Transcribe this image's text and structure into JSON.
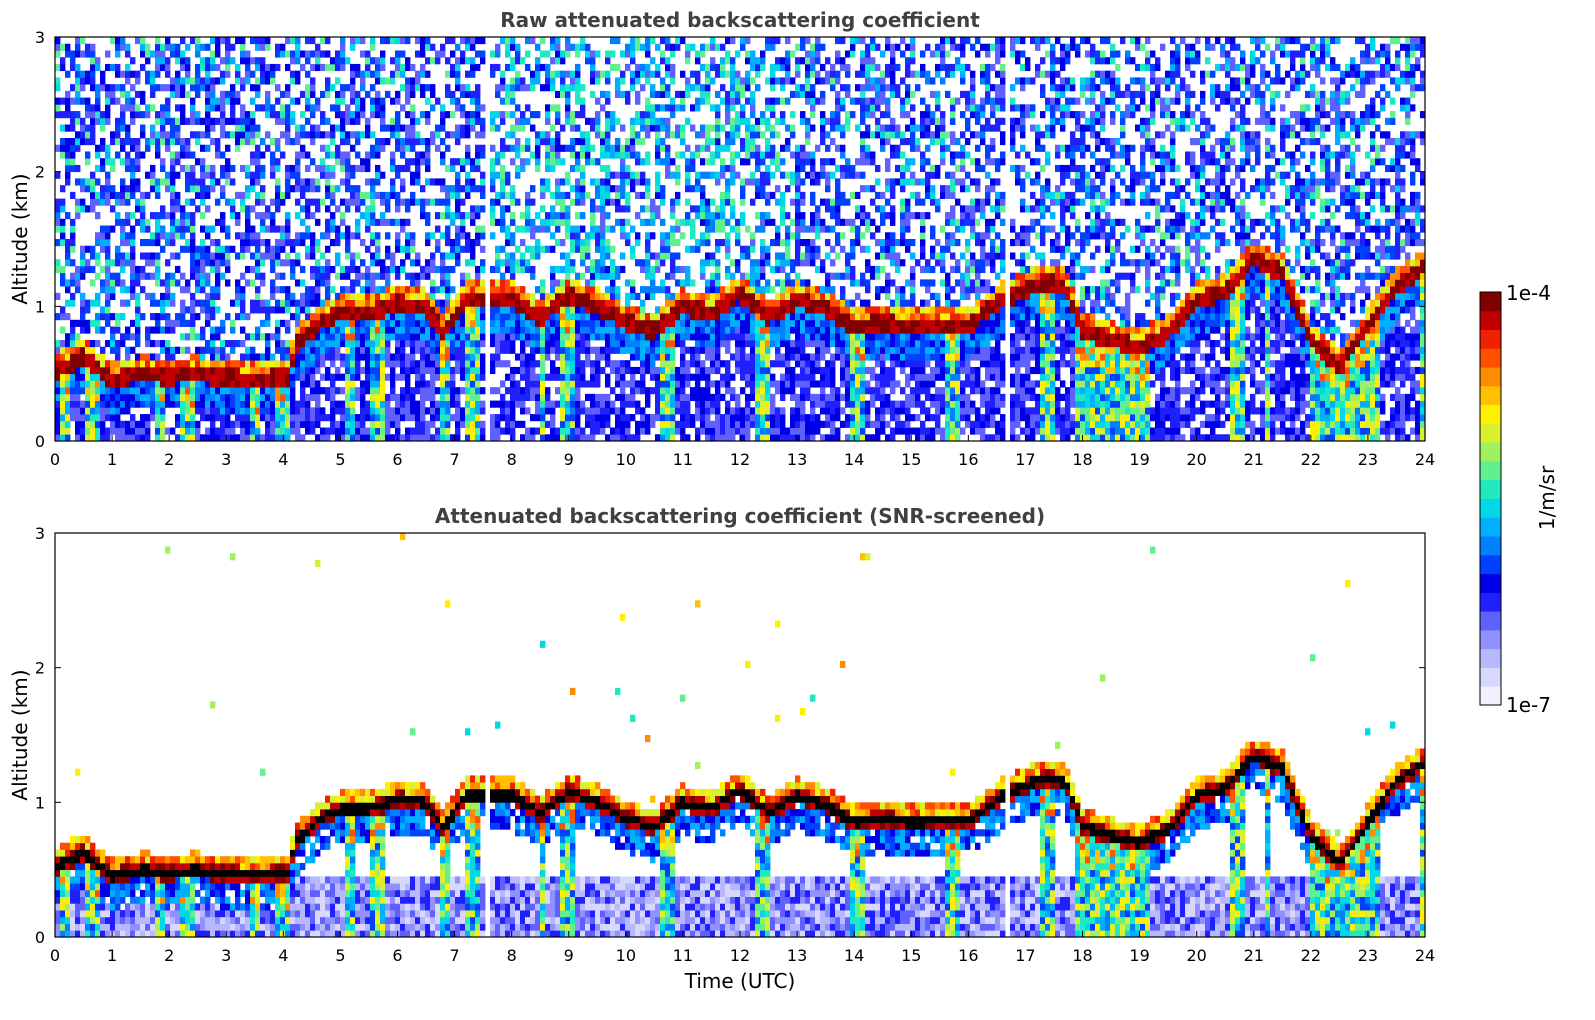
{
  "chart_data": [
    {
      "type": "heatmap",
      "title": "Raw attenuated backscattering coefficient",
      "xlabel": "",
      "ylabel": "Altitude (km)",
      "xlim": [
        0,
        24
      ],
      "ylim": [
        0,
        3
      ],
      "xticks": [
        "0",
        "1",
        "2",
        "3",
        "4",
        "5",
        "6",
        "7",
        "8",
        "9",
        "10",
        "11",
        "12",
        "13",
        "14",
        "15",
        "16",
        "17",
        "18",
        "19",
        "20",
        "21",
        "22",
        "23",
        "24"
      ],
      "yticks": [
        "0",
        "1",
        "2",
        "3"
      ],
      "screened": false,
      "data_gaps_hours": [
        [
          7.5,
          7.6
        ],
        [
          16.65,
          16.75
        ]
      ],
      "cloud_base_km": [
        {
          "t": 0,
          "z": 0.52
        },
        {
          "t": 0.5,
          "z": 0.62
        },
        {
          "t": 1,
          "z": 0.45
        },
        {
          "t": 1.5,
          "z": 0.5
        },
        {
          "t": 2,
          "z": 0.48
        },
        {
          "t": 2.5,
          "z": 0.5
        },
        {
          "t": 3,
          "z": 0.47
        },
        {
          "t": 3.5,
          "z": 0.46
        },
        {
          "t": 4.1,
          "z": 0.47
        },
        {
          "t": 4.2,
          "z": 0.7
        },
        {
          "t": 4.7,
          "z": 0.9
        },
        {
          "t": 5,
          "z": 0.95
        },
        {
          "t": 5.5,
          "z": 0.95
        },
        {
          "t": 6,
          "z": 1.02
        },
        {
          "t": 6.5,
          "z": 1.0
        },
        {
          "t": 6.8,
          "z": 0.8
        },
        {
          "t": 7.2,
          "z": 1.05
        },
        {
          "t": 7.5,
          "z": 1.05
        },
        {
          "t": 8,
          "z": 1.05
        },
        {
          "t": 8.5,
          "z": 0.92
        },
        {
          "t": 9,
          "z": 1.08
        },
        {
          "t": 9.5,
          "z": 1.0
        },
        {
          "t": 10,
          "z": 0.88
        },
        {
          "t": 10.5,
          "z": 0.82
        },
        {
          "t": 11,
          "z": 1.0
        },
        {
          "t": 11.5,
          "z": 0.95
        },
        {
          "t": 12,
          "z": 1.1
        },
        {
          "t": 12.5,
          "z": 0.92
        },
        {
          "t": 13,
          "z": 1.05
        },
        {
          "t": 13.5,
          "z": 0.98
        },
        {
          "t": 14,
          "z": 0.85
        },
        {
          "t": 14.5,
          "z": 0.88
        },
        {
          "t": 15,
          "z": 0.85
        },
        {
          "t": 15.5,
          "z": 0.86
        },
        {
          "t": 16,
          "z": 0.86
        },
        {
          "t": 16.6,
          "z": 1.05
        },
        {
          "t": 17.3,
          "z": 1.18
        },
        {
          "t": 17.7,
          "z": 1.15
        },
        {
          "t": 18,
          "z": 0.82
        },
        {
          "t": 18.5,
          "z": 0.75
        },
        {
          "t": 19,
          "z": 0.7
        },
        {
          "t": 19.5,
          "z": 0.8
        },
        {
          "t": 20,
          "z": 1.05
        },
        {
          "t": 20.5,
          "z": 1.1
        },
        {
          "t": 21,
          "z": 1.35
        },
        {
          "t": 21.5,
          "z": 1.25
        },
        {
          "t": 22,
          "z": 0.75
        },
        {
          "t": 22.5,
          "z": 0.55
        },
        {
          "t": 23,
          "z": 0.85
        },
        {
          "t": 23.5,
          "z": 1.15
        },
        {
          "t": 24,
          "z": 1.3
        }
      ],
      "colorbar": {
        "min_label": "1e-7",
        "max_label": "1e-4",
        "label": "1/m/sr",
        "scale": "log"
      }
    },
    {
      "type": "heatmap",
      "title": "Attenuated backscattering coefficient (SNR-screened)",
      "xlabel": "Time (UTC)",
      "ylabel": "Altitude (km)",
      "xlim": [
        0,
        24
      ],
      "ylim": [
        0,
        3
      ],
      "xticks": [
        "0",
        "1",
        "2",
        "3",
        "4",
        "5",
        "6",
        "7",
        "8",
        "9",
        "10",
        "11",
        "12",
        "13",
        "14",
        "15",
        "16",
        "17",
        "18",
        "19",
        "20",
        "21",
        "22",
        "23",
        "24"
      ],
      "yticks": [
        "0",
        "1",
        "2",
        "3"
      ],
      "screened": true,
      "data_gaps_hours": [
        [
          7.5,
          7.6
        ],
        [
          16.65,
          16.75
        ]
      ]
    }
  ],
  "colorbar": {
    "max_label": "1e-4",
    "min_label": "1e-7",
    "label": "1/m/sr",
    "colors": [
      "#f0f0ff",
      "#d8d8ff",
      "#b8b8ff",
      "#9090ff",
      "#6060ff",
      "#2020ff",
      "#0000e8",
      "#0040ff",
      "#0080ff",
      "#00b0ff",
      "#00d8e8",
      "#20e8c0",
      "#60f090",
      "#a0f060",
      "#d8f030",
      "#fff000",
      "#ffc000",
      "#ff8c00",
      "#ff5000",
      "#f02000",
      "#c00000",
      "#800000"
    ]
  }
}
